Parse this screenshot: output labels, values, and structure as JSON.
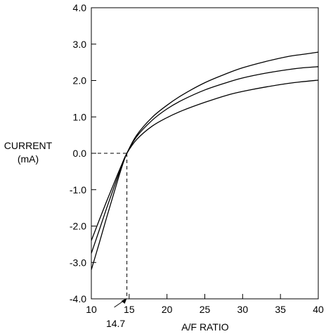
{
  "chart_data": {
    "type": "line",
    "xlabel": "A/F RATIO",
    "ylabel_lines": [
      "CURRENT",
      "(mA)"
    ],
    "xlim": [
      10,
      40
    ],
    "ylim": [
      -4.0,
      4.0
    ],
    "xticks": [
      10,
      15,
      20,
      25,
      30,
      35,
      40
    ],
    "xtick_labels": [
      "10",
      "15",
      "20",
      "25",
      "30",
      "35",
      "40"
    ],
    "yticks": [
      -4.0,
      -3.0,
      -2.0,
      -1.0,
      0.0,
      1.0,
      2.0,
      3.0,
      4.0
    ],
    "ytick_labels": [
      "-4.0",
      "-3.0",
      "-2.0",
      "-1.0",
      "0.0",
      "1.0",
      "2.0",
      "3.0",
      "4.0"
    ],
    "grid": false,
    "line_color": "#000000",
    "annotation": {
      "label": "14.7",
      "x": 14.7,
      "y": 0.0
    },
    "series": [
      {
        "x": [
          10,
          11,
          12,
          13,
          14,
          14.7,
          16,
          18,
          20,
          22,
          25,
          28,
          30,
          33,
          36,
          38,
          40
        ],
        "y": [
          -3.2,
          -2.5,
          -1.78,
          -1.08,
          -0.4,
          0.0,
          0.5,
          0.98,
          1.32,
          1.6,
          1.94,
          2.2,
          2.35,
          2.52,
          2.66,
          2.72,
          2.78
        ]
      },
      {
        "x": [
          10,
          11,
          12,
          13,
          14,
          14.7,
          16,
          18,
          20,
          22,
          25,
          28,
          30,
          33,
          36,
          38,
          40
        ],
        "y": [
          -2.75,
          -2.14,
          -1.52,
          -0.93,
          -0.36,
          0.0,
          0.46,
          0.9,
          1.22,
          1.46,
          1.74,
          1.95,
          2.07,
          2.2,
          2.3,
          2.35,
          2.38
        ]
      },
      {
        "x": [
          10,
          11,
          12,
          13,
          14,
          14.7,
          16,
          18,
          20,
          22,
          25,
          28,
          30,
          33,
          36,
          38,
          40
        ],
        "y": [
          -2.4,
          -1.86,
          -1.33,
          -0.82,
          -0.32,
          0.0,
          0.38,
          0.74,
          0.98,
          1.17,
          1.4,
          1.6,
          1.7,
          1.82,
          1.92,
          1.97,
          2.01
        ]
      }
    ]
  }
}
